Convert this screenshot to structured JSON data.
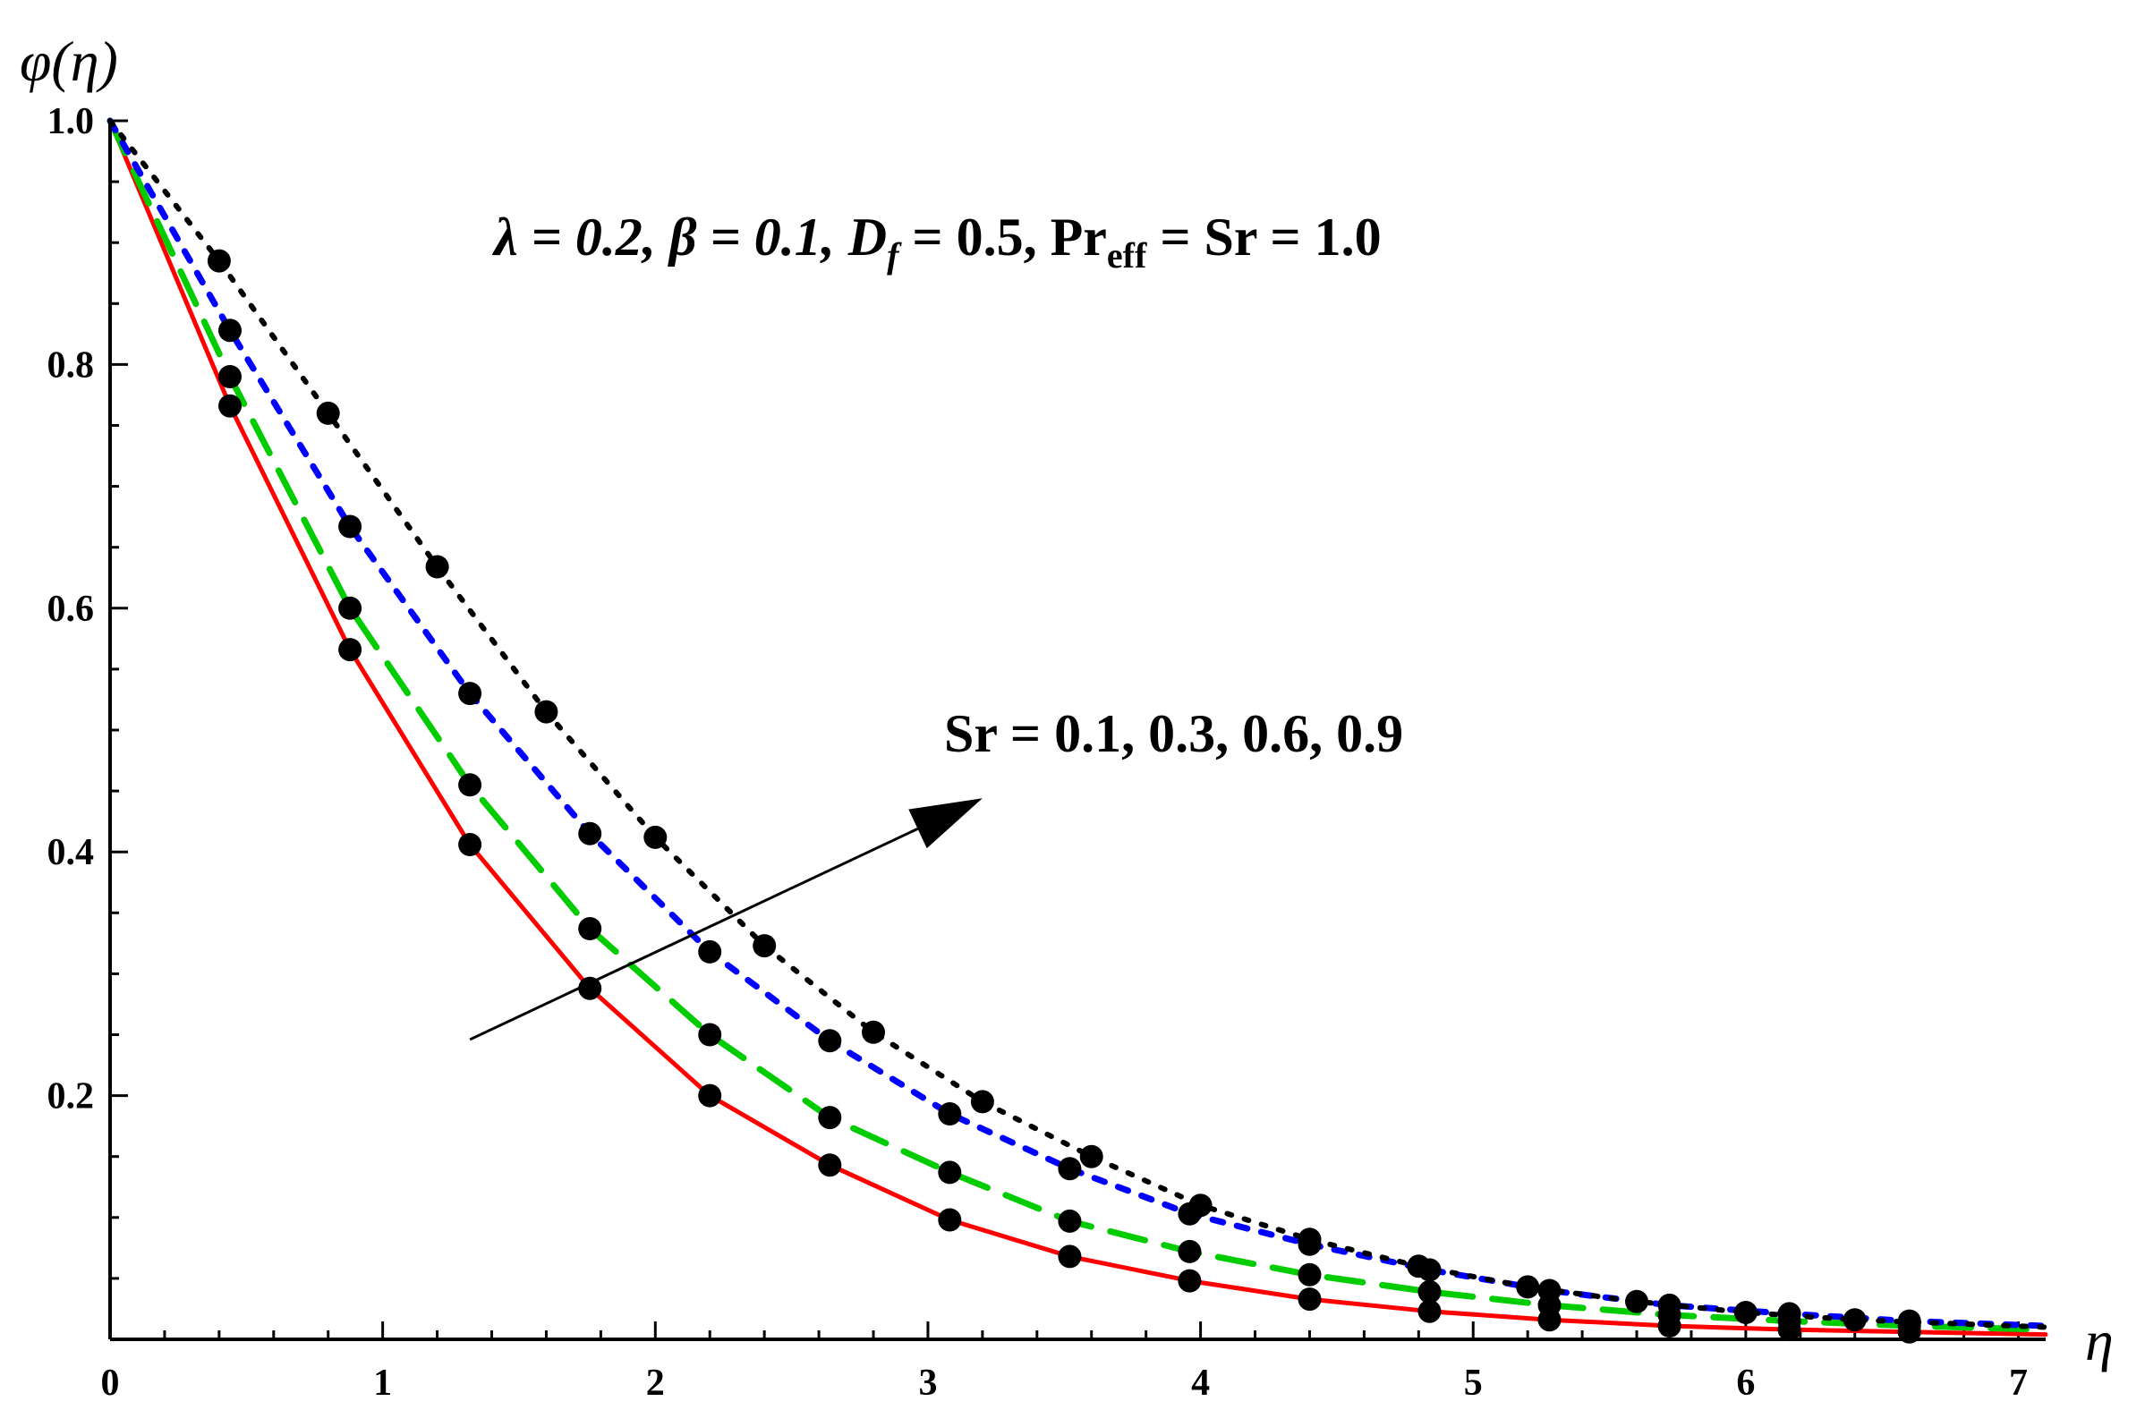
{
  "chart_data": {
    "type": "line",
    "title": "",
    "xlabel": "η",
    "ylabel": "φ(η)",
    "xlim": [
      0,
      7.1
    ],
    "ylim": [
      0,
      1.0
    ],
    "x_ticks": [
      0,
      1,
      2,
      3,
      4,
      5,
      6,
      7
    ],
    "y_ticks": [
      0.2,
      0.4,
      0.6,
      0.8,
      1.0
    ],
    "x_tick_labels": [
      "0",
      "1",
      "2",
      "3",
      "4",
      "5",
      "6",
      "7"
    ],
    "y_tick_labels": [
      "0.2",
      "0.4",
      "0.6",
      "0.8",
      "1.0"
    ],
    "grid": false,
    "legend": "none",
    "parameters_label": {
      "lambda": "λ = 0.2, ",
      "beta": "β = 0.1, ",
      "df_symbol": "D",
      "df_sub": "f",
      "df_value": " =  0.5, ",
      "pr_symbol": "Pr",
      "pr_sub": "eff",
      "rest": " = Sr = 1.0"
    },
    "arrow_label": "Sr = 0.1, 0.3, 0.6, 0.9",
    "arrow": {
      "from": [
        1.32,
        0.246
      ],
      "to": [
        3.2,
        0.444
      ]
    },
    "series": [
      {
        "style": "solid",
        "color": "#ff0000",
        "x": [
          0,
          0.44,
          0.88,
          1.32,
          1.76,
          2.2,
          2.64,
          3.08,
          3.52,
          3.96,
          4.4,
          4.84,
          5.28,
          5.72,
          6.16,
          6.6,
          7.1
        ],
        "y": [
          1.0,
          0.766,
          0.566,
          0.406,
          0.288,
          0.2,
          0.143,
          0.098,
          0.068,
          0.048,
          0.033,
          0.023,
          0.016,
          0.011,
          0.008,
          0.006,
          0.004
        ]
      },
      {
        "style": "dashed",
        "color": "#00cc00",
        "x": [
          0,
          0.44,
          0.88,
          1.32,
          1.76,
          2.2,
          2.64,
          3.08,
          3.52,
          3.96,
          4.4,
          4.84,
          5.28,
          5.72,
          6.16,
          6.6,
          7.1
        ],
        "y": [
          1.0,
          0.79,
          0.6,
          0.455,
          0.337,
          0.25,
          0.182,
          0.137,
          0.097,
          0.072,
          0.053,
          0.039,
          0.028,
          0.02,
          0.015,
          0.011,
          0.008
        ]
      },
      {
        "style": "dotted",
        "color": "#0000ff",
        "x": [
          0,
          0.44,
          0.88,
          1.32,
          1.76,
          2.2,
          2.64,
          3.08,
          3.52,
          3.96,
          4.4,
          4.84,
          5.28,
          5.72,
          6.16,
          6.6,
          7.1
        ],
        "y": [
          1.0,
          0.828,
          0.667,
          0.53,
          0.415,
          0.318,
          0.245,
          0.185,
          0.14,
          0.103,
          0.078,
          0.057,
          0.04,
          0.028,
          0.021,
          0.015,
          0.011
        ]
      },
      {
        "style": "dotted-black",
        "color": "#000000",
        "x": [
          0,
          0.4,
          0.8,
          1.2,
          1.6,
          2.0,
          2.4,
          2.8,
          3.2,
          3.6,
          4.0,
          4.4,
          4.8,
          5.2,
          5.6,
          6.0,
          6.4,
          7.1
        ],
        "y": [
          1.0,
          0.885,
          0.76,
          0.634,
          0.515,
          0.412,
          0.323,
          0.252,
          0.195,
          0.15,
          0.11,
          0.082,
          0.06,
          0.043,
          0.031,
          0.022,
          0.016,
          0.01
        ]
      }
    ]
  }
}
